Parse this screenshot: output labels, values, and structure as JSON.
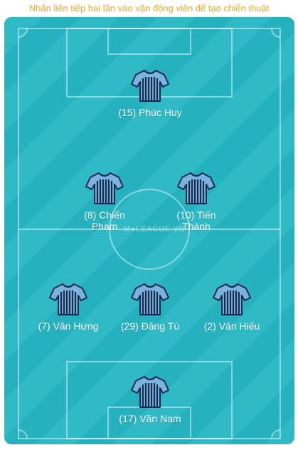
{
  "hint": "Nhấn liên tiếp hai lần vào vận động viên để tạo chiến thuật",
  "watermark": "M●LEAGUE.VN",
  "players": [
    {
      "number": 15,
      "name": "(15) Phúc Huy"
    },
    {
      "number": 8,
      "name": "(8) Chiến Phạm"
    },
    {
      "number": 10,
      "name": "(10) Tiến Thành"
    },
    {
      "number": 7,
      "name": "(7) Văn Hưng"
    },
    {
      "number": 29,
      "name": "(29) Đăng Tú"
    },
    {
      "number": 2,
      "name": "(2) Văn Hiếu"
    },
    {
      "number": 17,
      "name": "(17) Văn Nam"
    }
  ],
  "colors": {
    "pitch": "#26b7c4",
    "hint_text": "#f5a623",
    "shirt_body": "#7ab3e0",
    "shirt_stripe": "#1b2b4d"
  }
}
